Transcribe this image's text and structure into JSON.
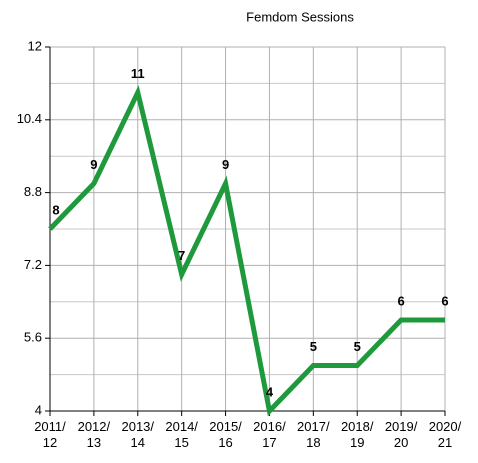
{
  "chart_data": {
    "type": "line",
    "title": "Femdom Sessions",
    "categories": [
      "2011/\n12",
      "2012/\n13",
      "2013/\n14",
      "2014/\n15",
      "2015/\n16",
      "2016/\n17",
      "2017/\n18",
      "2018/\n19",
      "2019/\n20",
      "2020/\n21"
    ],
    "series": [
      {
        "name": "Femdom Sessions",
        "color": "#1e9a3c",
        "values": [
          8,
          9,
          11,
          7,
          9,
          4,
          5,
          5,
          6,
          6
        ]
      }
    ],
    "ylim": [
      4,
      12
    ],
    "yticks": [
      4,
      5.6,
      7.2,
      8.8,
      10.4,
      12
    ],
    "minor_yticks": [
      4.8,
      6.4,
      8,
      9.6,
      11.2
    ],
    "grid": true,
    "data_labels": true
  }
}
